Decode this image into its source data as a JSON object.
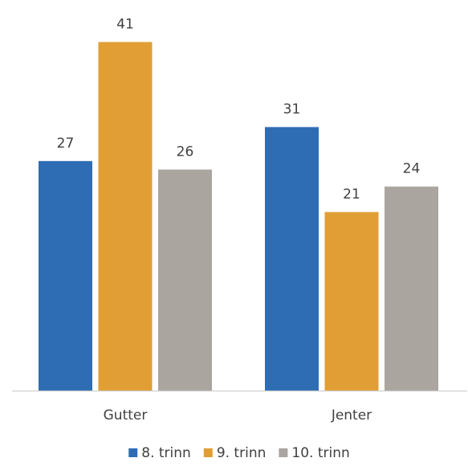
{
  "chart_data": {
    "type": "bar",
    "categories": [
      "Gutter",
      "Jenter"
    ],
    "series": [
      {
        "name": "8. trinn",
        "values": [
          27,
          31
        ],
        "color": "#2e6db4"
      },
      {
        "name": "9. trinn",
        "values": [
          41,
          21
        ],
        "color": "#e09e35"
      },
      {
        "name": "10. trinn",
        "values": [
          26,
          24
        ],
        "color": "#aba59f"
      }
    ],
    "ylim": [
      0,
      46
    ],
    "grid": false,
    "data_labels": true,
    "legend": "bottom-center",
    "title": "",
    "xlabel": "",
    "ylabel": ""
  },
  "colors": {
    "axis_line": "#d0d0d0",
    "text": "#404040"
  }
}
